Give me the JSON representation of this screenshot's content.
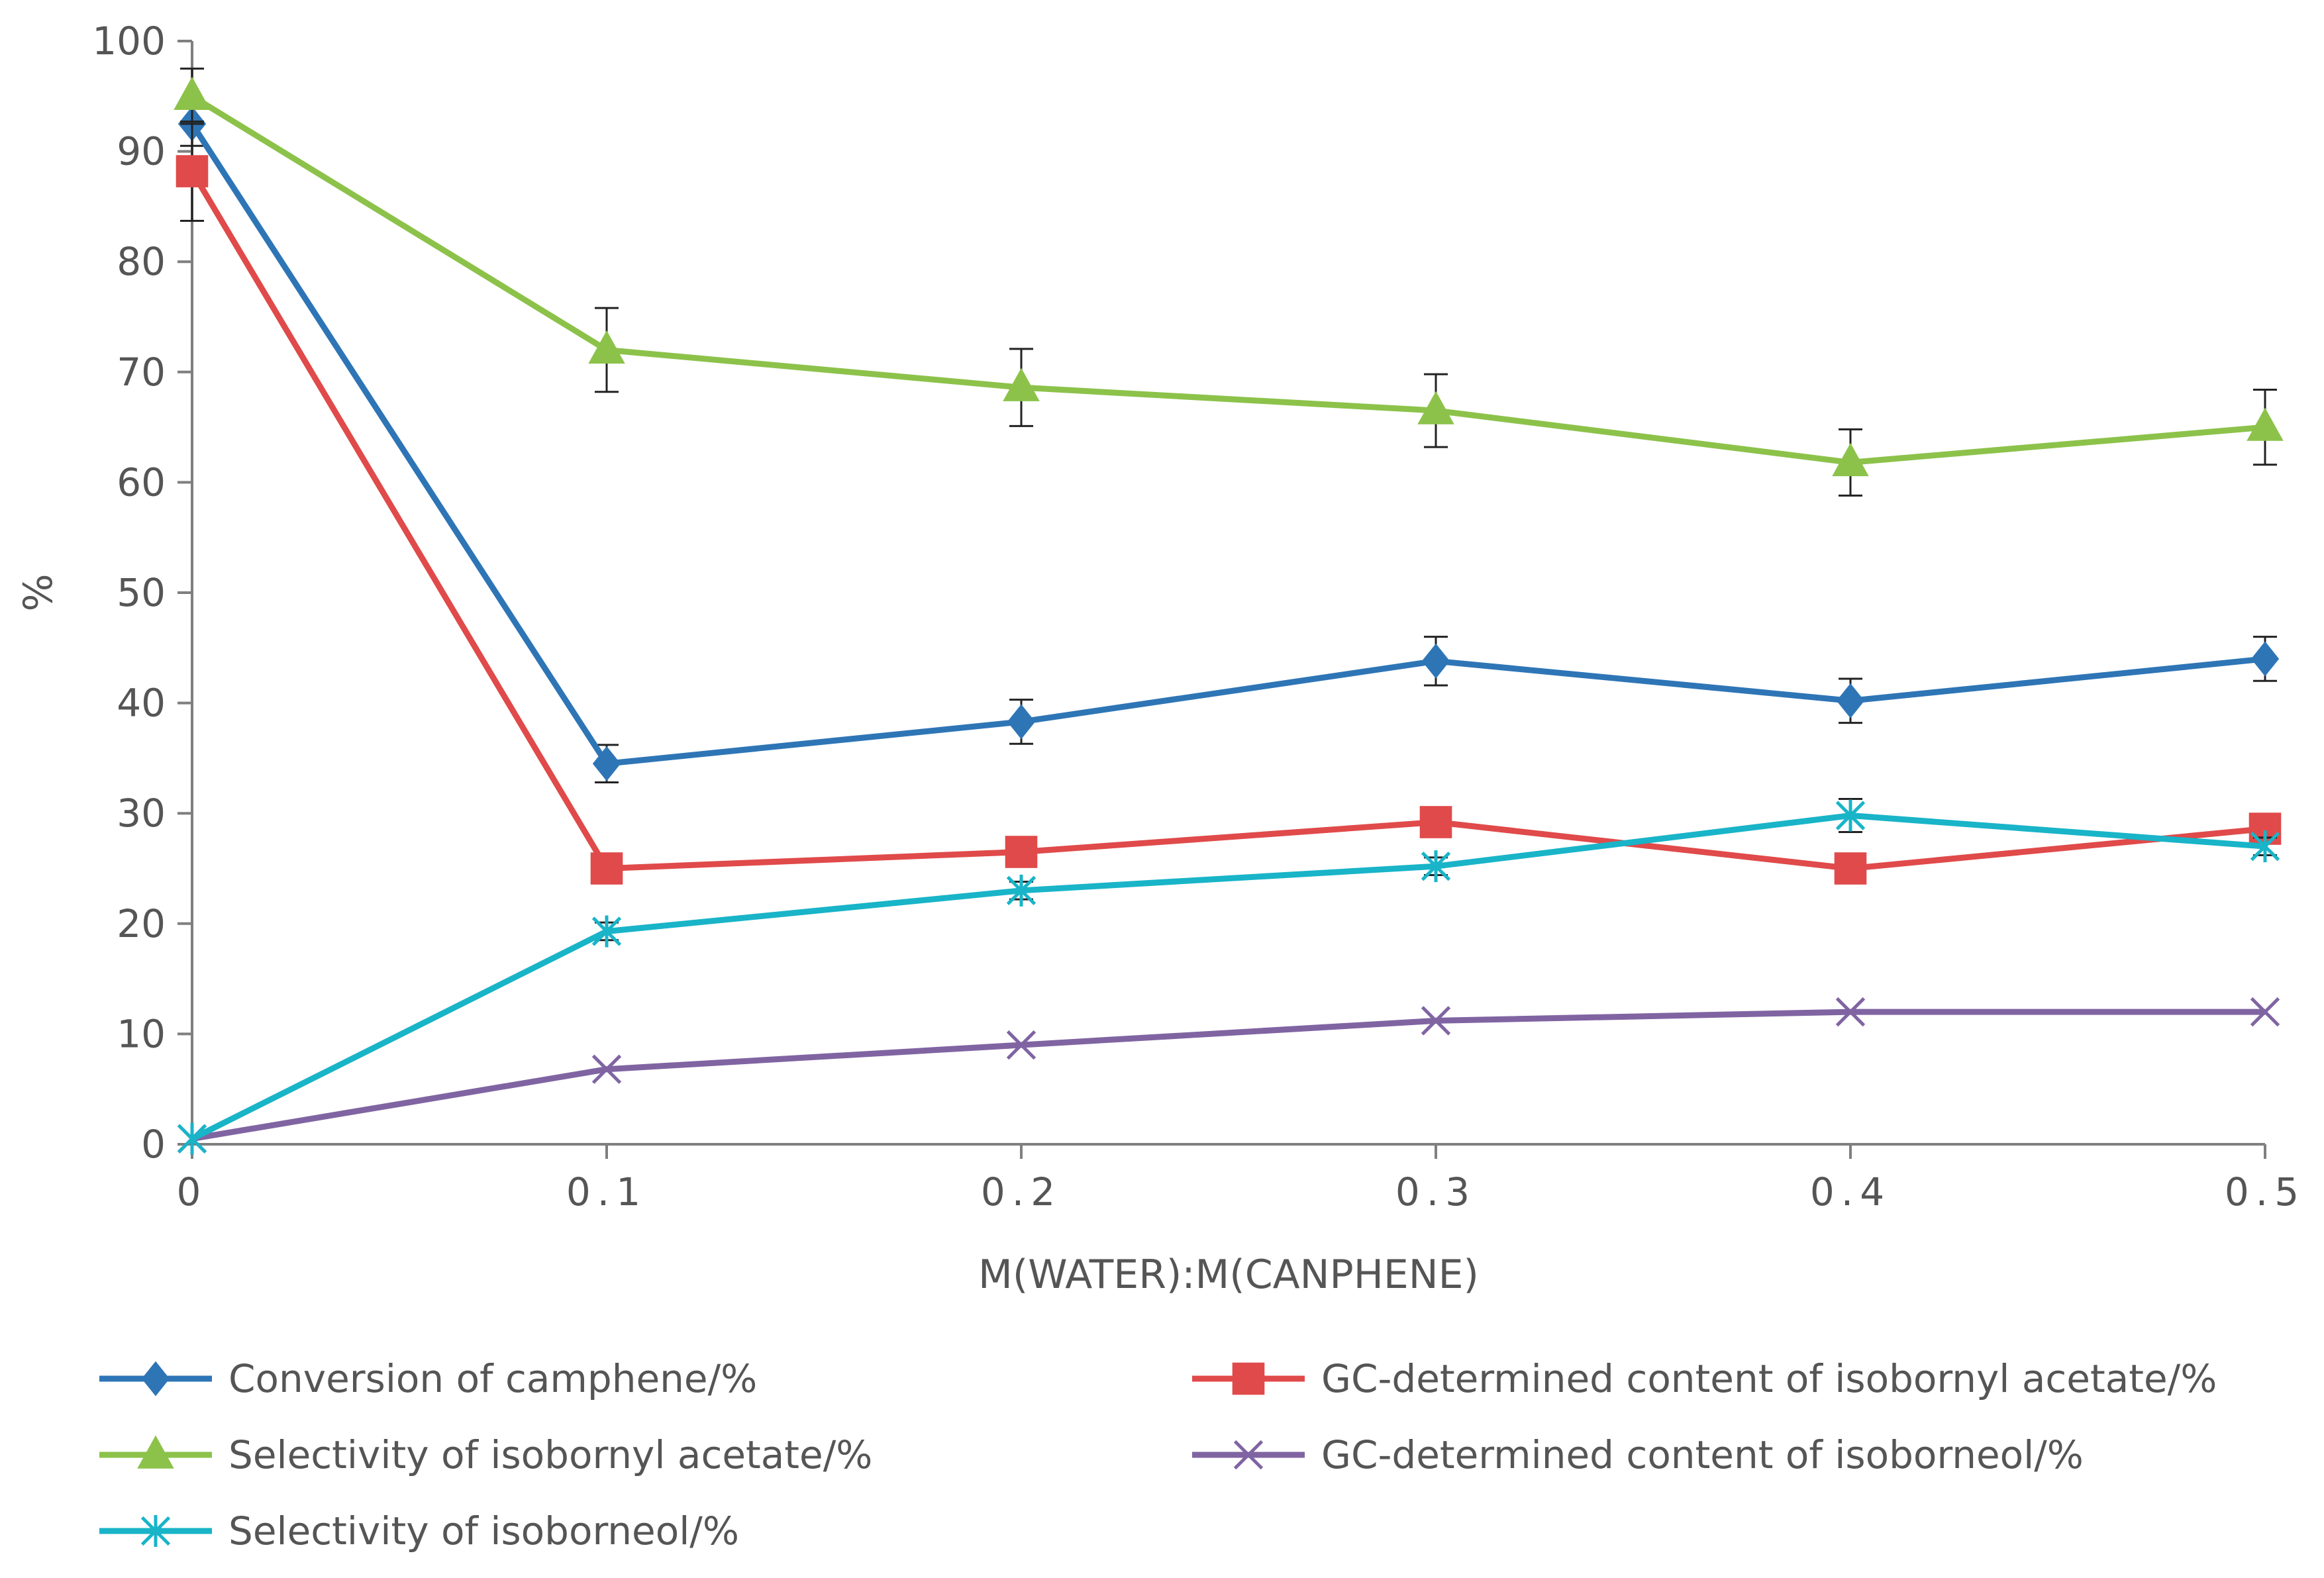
{
  "chart_data": {
    "type": "line",
    "title": "",
    "xlabel": "M(WATER):M(CANPHENE)",
    "ylabel": "%",
    "x": [
      0,
      0.1,
      0.2,
      0.3,
      0.4,
      0.5
    ],
    "x_tick_labels": [
      "0",
      "0.1",
      "0.2",
      "0.3",
      "0.4",
      "0.5"
    ],
    "y_ticks": [
      0,
      10,
      20,
      30,
      40,
      50,
      60,
      70,
      80,
      90,
      100
    ],
    "y_tick_labels": [
      "0",
      "10",
      "20",
      "30",
      "40",
      "50",
      "60",
      "70",
      "80",
      "90",
      "100"
    ],
    "xlim": [
      0,
      0.5
    ],
    "ylim": [
      0,
      100
    ],
    "grid": false,
    "legend_position": "bottom",
    "series": [
      {
        "name": "Conversion of camphene/%",
        "color": "#2E75B6",
        "marker": "diamond",
        "values": [
          92.5,
          34.5,
          38.3,
          43.8,
          40.2,
          44.0
        ],
        "errors": [
          2.0,
          1.7,
          2.0,
          2.2,
          2.0,
          2.0
        ]
      },
      {
        "name": "GC-determined content of isobornyl acetate/%",
        "color": "#E04A4A",
        "marker": "square",
        "values": [
          88.2,
          25.0,
          26.5,
          29.2,
          25.0,
          28.6
        ],
        "errors": [
          4.5,
          0,
          0,
          0,
          0,
          0
        ]
      },
      {
        "name": "Selectivity of isobornyl acetate/%",
        "color": "#8CC24A",
        "marker": "triangle",
        "values": [
          95.0,
          72.0,
          68.6,
          66.5,
          61.8,
          65.0
        ],
        "errors": [
          2.5,
          3.8,
          3.5,
          3.3,
          3.0,
          3.4
        ]
      },
      {
        "name": "GC-determined content of isoborneol/%",
        "color": "#8064A2",
        "marker": "x",
        "values": [
          0.5,
          6.8,
          9.0,
          11.2,
          12.0,
          12.0
        ],
        "errors": [
          0,
          0,
          0,
          0,
          0,
          0
        ]
      },
      {
        "name": "Selectivity of isoborneol/%",
        "color": "#19B4C8",
        "marker": "star",
        "values": [
          0.5,
          19.3,
          23.0,
          25.2,
          29.8,
          27.0
        ],
        "errors": [
          0,
          0.8,
          0.8,
          0.8,
          1.5,
          0.8
        ]
      }
    ],
    "legend_order": [
      0,
      1,
      2,
      3,
      4
    ]
  }
}
